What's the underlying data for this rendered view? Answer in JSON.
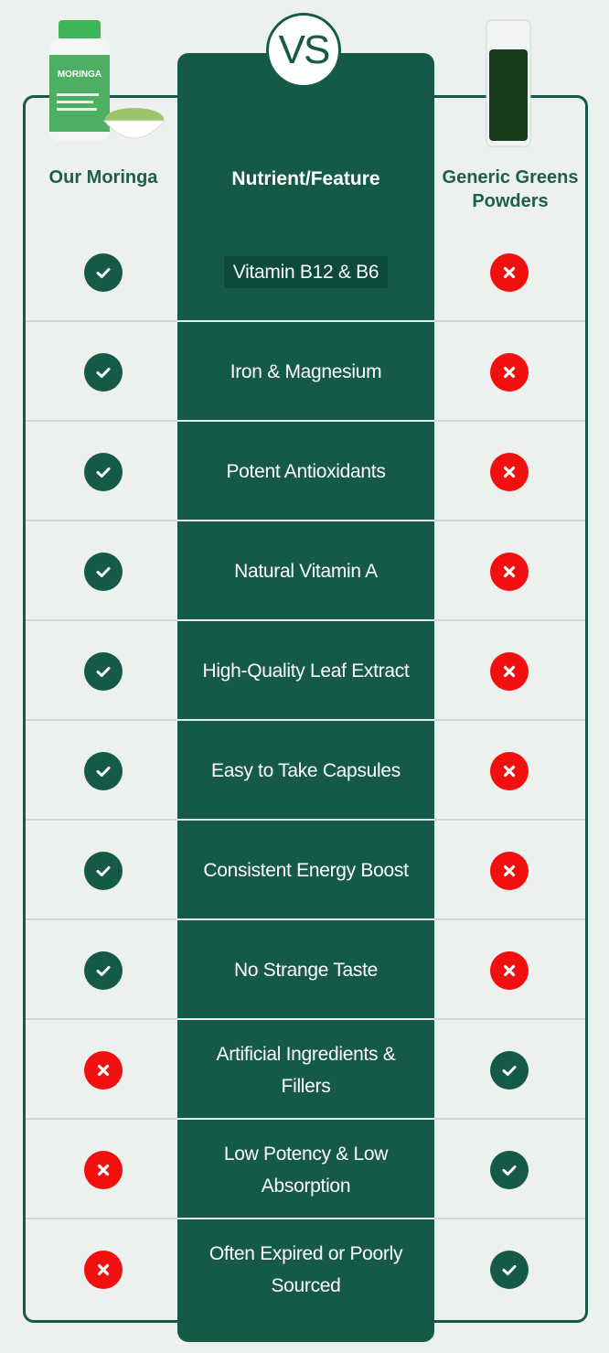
{
  "vs_label": "VS",
  "product_image": {
    "logo_text": "MORINGA"
  },
  "headers": {
    "left": "Our Moringa",
    "middle": "Nutrient/Feature",
    "right": "Generic Greens Powders"
  },
  "colors": {
    "brand_green": "#155a48",
    "cross_red": "#f20f0f",
    "background": "#edf1ee"
  },
  "rows": [
    {
      "feature": "Vitamin B12 & B6",
      "ours": "check",
      "generic": "cross"
    },
    {
      "feature": "Iron & Magnesium",
      "ours": "check",
      "generic": "cross"
    },
    {
      "feature": "Potent Antioxidants",
      "ours": "check",
      "generic": "cross"
    },
    {
      "feature": "Natural Vitamin A",
      "ours": "check",
      "generic": "cross"
    },
    {
      "feature": "High-Quality Leaf Extract",
      "ours": "check",
      "generic": "cross"
    },
    {
      "feature": "Easy to Take Capsules",
      "ours": "check",
      "generic": "cross"
    },
    {
      "feature": "Consistent Energy Boost",
      "ours": "check",
      "generic": "cross"
    },
    {
      "feature": "No Strange Taste",
      "ours": "check",
      "generic": "cross"
    },
    {
      "feature": "Artificial Ingredients & Fillers",
      "ours": "cross",
      "generic": "check"
    },
    {
      "feature": "Low Potency & Low Absorption",
      "ours": "cross",
      "generic": "check"
    },
    {
      "feature": "Often Expired or Poorly Sourced",
      "ours": "cross",
      "generic": "check"
    }
  ]
}
